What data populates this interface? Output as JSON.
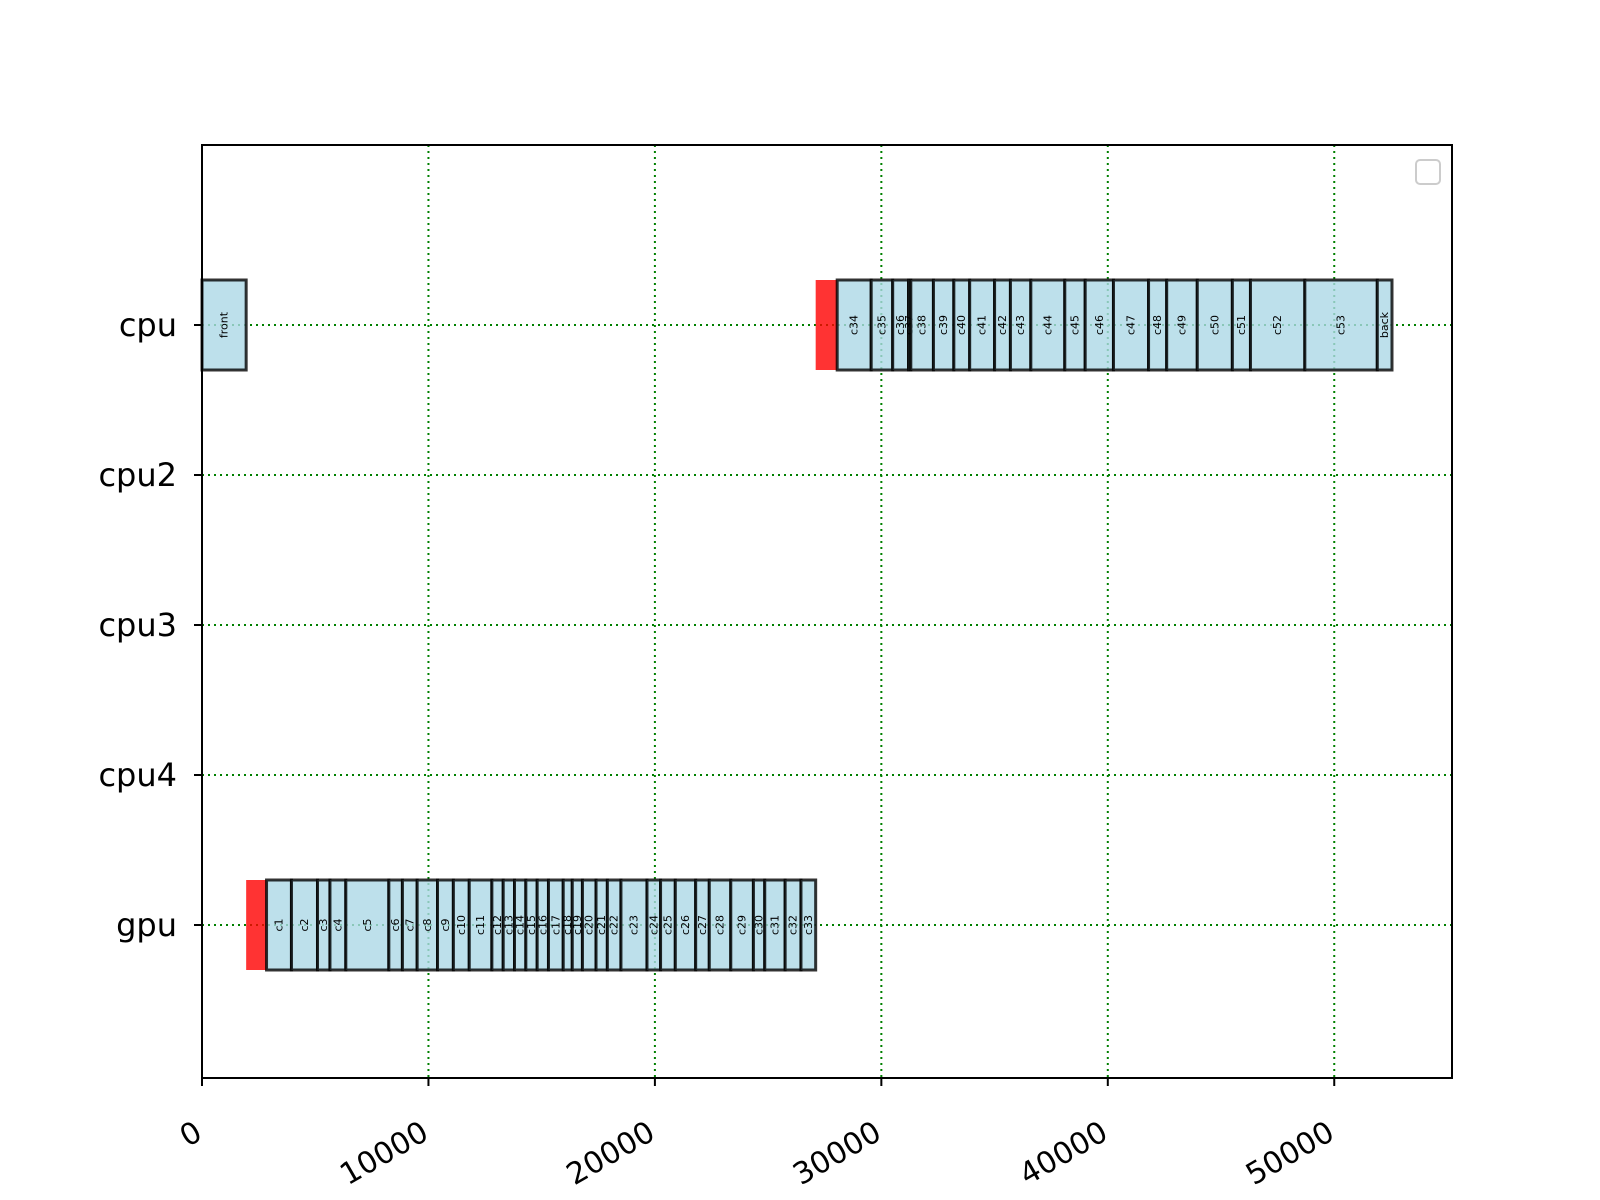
{
  "chart_data": {
    "type": "gantt",
    "title": "",
    "xlabel": "",
    "ylabel": "",
    "xlim": [
      0,
      55200
    ],
    "x_ticks": [
      0,
      10000,
      20000,
      30000,
      40000,
      50000
    ],
    "x_tick_labels": [
      "0",
      "10000",
      "20000",
      "30000",
      "40000",
      "50000"
    ],
    "rows": [
      "cpu",
      "cpu2",
      "cpu3",
      "cpu4",
      "gpu"
    ],
    "grid": true,
    "legend": "top-right, empty",
    "colors": {
      "task": "#add8e6",
      "transfer": "#ff0000",
      "grid": "#008000",
      "edge": "#000000"
    },
    "tasks": [
      {
        "row": "cpu",
        "name": "front",
        "start": 0,
        "end": 1950,
        "kind": "task"
      },
      {
        "row": "cpu",
        "name": "",
        "start": 27100,
        "end": 28050,
        "kind": "transfer"
      },
      {
        "row": "cpu",
        "name": "c34",
        "start": 28050,
        "end": 29550,
        "kind": "task"
      },
      {
        "row": "cpu",
        "name": "c35",
        "start": 29550,
        "end": 30500,
        "kind": "task"
      },
      {
        "row": "cpu",
        "name": "c36",
        "start": 30500,
        "end": 31200,
        "kind": "task"
      },
      {
        "row": "cpu",
        "name": "c37",
        "start": 31200,
        "end": 31300,
        "kind": "task"
      },
      {
        "row": "cpu",
        "name": "c38",
        "start": 31300,
        "end": 32300,
        "kind": "task"
      },
      {
        "row": "cpu",
        "name": "c39",
        "start": 32300,
        "end": 33200,
        "kind": "task"
      },
      {
        "row": "cpu",
        "name": "c40",
        "start": 33200,
        "end": 33900,
        "kind": "task"
      },
      {
        "row": "cpu",
        "name": "c41",
        "start": 33900,
        "end": 35000,
        "kind": "task"
      },
      {
        "row": "cpu",
        "name": "c42",
        "start": 35000,
        "end": 35700,
        "kind": "task"
      },
      {
        "row": "cpu",
        "name": "c43",
        "start": 35700,
        "end": 36600,
        "kind": "task"
      },
      {
        "row": "cpu",
        "name": "c44",
        "start": 36600,
        "end": 38100,
        "kind": "task"
      },
      {
        "row": "cpu",
        "name": "c45",
        "start": 38100,
        "end": 39000,
        "kind": "task"
      },
      {
        "row": "cpu",
        "name": "c46",
        "start": 39000,
        "end": 40250,
        "kind": "task"
      },
      {
        "row": "cpu",
        "name": "c47",
        "start": 40250,
        "end": 41800,
        "kind": "task"
      },
      {
        "row": "cpu",
        "name": "c48",
        "start": 41800,
        "end": 42600,
        "kind": "task"
      },
      {
        "row": "cpu",
        "name": "c49",
        "start": 42600,
        "end": 43950,
        "kind": "task"
      },
      {
        "row": "cpu",
        "name": "c50",
        "start": 43950,
        "end": 45500,
        "kind": "task"
      },
      {
        "row": "cpu",
        "name": "c51",
        "start": 45500,
        "end": 46300,
        "kind": "task"
      },
      {
        "row": "cpu",
        "name": "c52",
        "start": 46300,
        "end": 48700,
        "kind": "task"
      },
      {
        "row": "cpu",
        "name": "c53",
        "start": 48700,
        "end": 51900,
        "kind": "task"
      },
      {
        "row": "cpu",
        "name": "back",
        "start": 51900,
        "end": 52550,
        "kind": "task"
      },
      {
        "row": "gpu",
        "name": "",
        "start": 1950,
        "end": 2850,
        "kind": "transfer"
      },
      {
        "row": "gpu",
        "name": "c1",
        "start": 2850,
        "end": 3950,
        "kind": "task"
      },
      {
        "row": "gpu",
        "name": "c2",
        "start": 3950,
        "end": 5100,
        "kind": "task"
      },
      {
        "row": "gpu",
        "name": "c3",
        "start": 5100,
        "end": 5650,
        "kind": "task"
      },
      {
        "row": "gpu",
        "name": "c4",
        "start": 5650,
        "end": 6350,
        "kind": "task"
      },
      {
        "row": "gpu",
        "name": "c5",
        "start": 6350,
        "end": 8250,
        "kind": "task"
      },
      {
        "row": "gpu",
        "name": "c6",
        "start": 8250,
        "end": 8850,
        "kind": "task"
      },
      {
        "row": "gpu",
        "name": "c7",
        "start": 8850,
        "end": 9500,
        "kind": "task"
      },
      {
        "row": "gpu",
        "name": "c8",
        "start": 9500,
        "end": 10400,
        "kind": "task"
      },
      {
        "row": "gpu",
        "name": "c9",
        "start": 10400,
        "end": 11100,
        "kind": "task"
      },
      {
        "row": "gpu",
        "name": "c10",
        "start": 11100,
        "end": 11800,
        "kind": "task"
      },
      {
        "row": "gpu",
        "name": "c11",
        "start": 11800,
        "end": 12800,
        "kind": "task"
      },
      {
        "row": "gpu",
        "name": "c12",
        "start": 12800,
        "end": 13300,
        "kind": "task"
      },
      {
        "row": "gpu",
        "name": "c13",
        "start": 13300,
        "end": 13800,
        "kind": "task"
      },
      {
        "row": "gpu",
        "name": "c14",
        "start": 13800,
        "end": 14300,
        "kind": "task"
      },
      {
        "row": "gpu",
        "name": "c15",
        "start": 14300,
        "end": 14800,
        "kind": "task"
      },
      {
        "row": "gpu",
        "name": "c16",
        "start": 14800,
        "end": 15300,
        "kind": "task"
      },
      {
        "row": "gpu",
        "name": "c17",
        "start": 15300,
        "end": 15950,
        "kind": "task"
      },
      {
        "row": "gpu",
        "name": "c18",
        "start": 15950,
        "end": 16350,
        "kind": "task"
      },
      {
        "row": "gpu",
        "name": "c19",
        "start": 16350,
        "end": 16800,
        "kind": "task"
      },
      {
        "row": "gpu",
        "name": "c20",
        "start": 16800,
        "end": 17400,
        "kind": "task"
      },
      {
        "row": "gpu",
        "name": "c21",
        "start": 17400,
        "end": 17900,
        "kind": "task"
      },
      {
        "row": "gpu",
        "name": "c22",
        "start": 17900,
        "end": 18500,
        "kind": "task"
      },
      {
        "row": "gpu",
        "name": "c23",
        "start": 18500,
        "end": 19650,
        "kind": "task"
      },
      {
        "row": "gpu",
        "name": "c24",
        "start": 19650,
        "end": 20250,
        "kind": "task"
      },
      {
        "row": "gpu",
        "name": "c25",
        "start": 20250,
        "end": 20900,
        "kind": "task"
      },
      {
        "row": "gpu",
        "name": "c26",
        "start": 20900,
        "end": 21800,
        "kind": "task"
      },
      {
        "row": "gpu",
        "name": "c27",
        "start": 21800,
        "end": 22400,
        "kind": "task"
      },
      {
        "row": "gpu",
        "name": "c28",
        "start": 22400,
        "end": 23350,
        "kind": "task"
      },
      {
        "row": "gpu",
        "name": "c29",
        "start": 23350,
        "end": 24350,
        "kind": "task"
      },
      {
        "row": "gpu",
        "name": "c30",
        "start": 24350,
        "end": 24850,
        "kind": "task"
      },
      {
        "row": "gpu",
        "name": "c31",
        "start": 24850,
        "end": 25750,
        "kind": "task"
      },
      {
        "row": "gpu",
        "name": "c32",
        "start": 25750,
        "end": 26450,
        "kind": "task"
      },
      {
        "row": "gpu",
        "name": "c33",
        "start": 26450,
        "end": 27100,
        "kind": "task"
      }
    ]
  }
}
